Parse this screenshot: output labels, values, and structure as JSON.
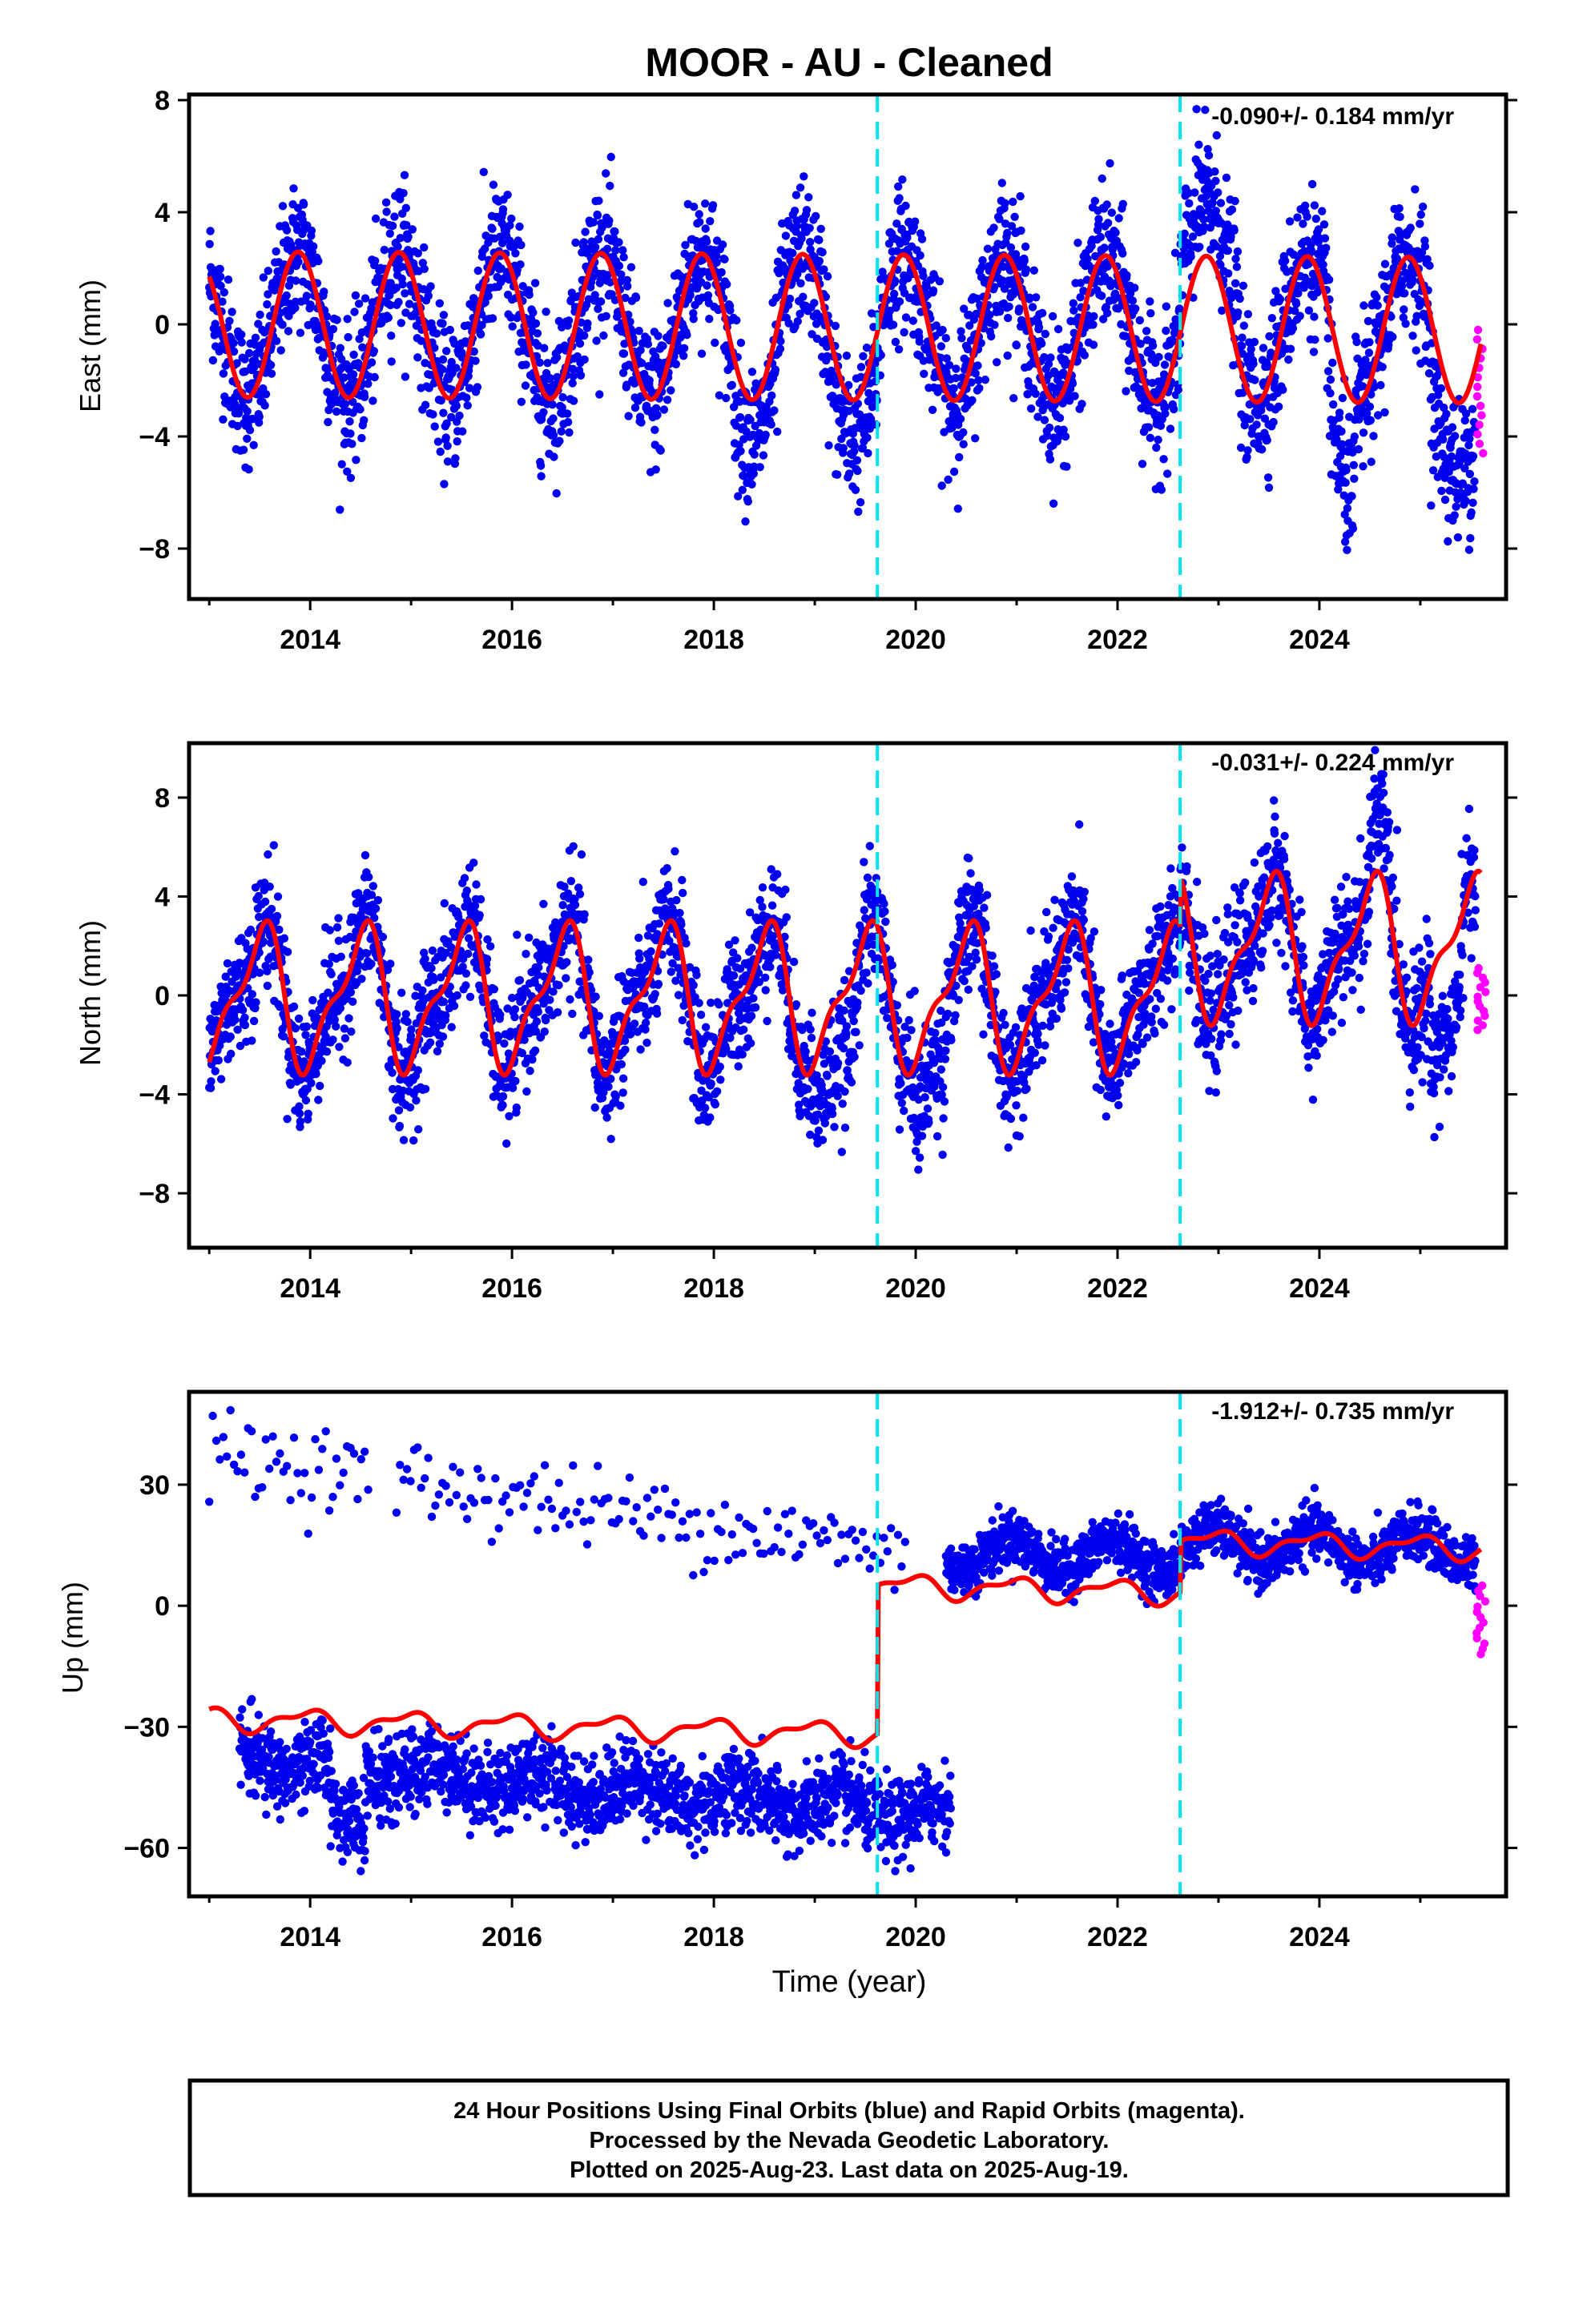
{
  "title": "MOOR  - AU - Cleaned",
  "colors": {
    "final_points": "#0000ee",
    "rapid_points": "#ff00ff",
    "model_line": "#ff0000",
    "event_line": "#00e5ee",
    "frame": "#000000"
  },
  "chart_data": [
    {
      "type": "scatter",
      "name": "east",
      "ylabel": "East (mm)",
      "xlabel": "",
      "rate_label": "-0.090+/- 0.184 mm/yr",
      "xlim": [
        2012.8,
        2025.85
      ],
      "ylim": [
        -9.8,
        8.2
      ],
      "xticks": [
        2014,
        2016,
        2018,
        2020,
        2022,
        2024
      ],
      "yticks": [
        -8,
        -4,
        0,
        4,
        8
      ],
      "event_lines": [
        2019.62,
        2022.62
      ],
      "seasonal_amplitude": 2.6,
      "model_offset": 0.0,
      "final_data_x_range": [
        2013.0,
        2025.55
      ],
      "rapid_data_x_range": [
        2025.55,
        2025.65
      ],
      "rapid_values_range": [
        -4.6,
        -0.2
      ]
    },
    {
      "type": "scatter",
      "name": "north",
      "ylabel": "North (mm)",
      "xlabel": "",
      "rate_label": "-0.031+/- 0.224 mm/yr",
      "xlim": [
        2012.8,
        2025.85
      ],
      "ylim": [
        -10.2,
        10.2
      ],
      "xticks": [
        2014,
        2016,
        2018,
        2020,
        2022,
        2024
      ],
      "yticks": [
        -8,
        -4,
        0,
        4,
        8
      ],
      "event_lines": [
        2019.62,
        2022.62
      ],
      "seasonal_amplitude": 2.8,
      "model_offset": 0.5,
      "final_data_x_range": [
        2013.0,
        2025.55
      ],
      "rapid_data_x_range": [
        2025.55,
        2025.65
      ],
      "rapid_values_range": [
        -1.4,
        1.1
      ]
    },
    {
      "type": "scatter",
      "name": "up",
      "ylabel": "Up (mm)",
      "xlabel": "Time (year)",
      "rate_label": "-1.912+/- 0.735 mm/yr",
      "xlim": [
        2012.8,
        2025.85
      ],
      "ylim": [
        -72,
        53
      ],
      "xticks": [
        2014,
        2016,
        2018,
        2020,
        2022,
        2024
      ],
      "yticks": [
        -60,
        -30,
        0,
        30
      ],
      "event_lines": [
        2019.62,
        2022.62
      ],
      "model_steps": [
        {
          "from": 2013.0,
          "to": 2019.62,
          "level": -28,
          "trend": -1.9
        },
        {
          "from": 2019.62,
          "to": 2022.62,
          "level": 5,
          "trend": -1.9
        },
        {
          "from": 2022.62,
          "to": 2025.6,
          "level": 16,
          "trend": -1.9
        }
      ],
      "seasonal_amplitude": 2.5,
      "cluster_low": {
        "x_range": [
          2013.3,
          2020.35
        ],
        "center_start": -38,
        "center_end": -52
      },
      "cluster_high": {
        "x_range": [
          2013.0,
          2019.9
        ],
        "center_start": 38,
        "center_end": 13
      },
      "cluster_post": {
        "x_range": [
          2020.3,
          2025.55
        ],
        "center_start": 13,
        "center_end": 11
      },
      "rapid_data_x_range": [
        2025.55,
        2025.65
      ],
      "rapid_values_range": [
        -12,
        5
      ]
    }
  ],
  "footer": {
    "line1": "24 Hour Positions Using Final Orbits (blue) and Rapid Orbits (magenta).",
    "line2": "Processed by the Nevada Geodetic Laboratory.",
    "line3": "Plotted on 2025-Aug-23. Last data on 2025-Aug-19."
  }
}
